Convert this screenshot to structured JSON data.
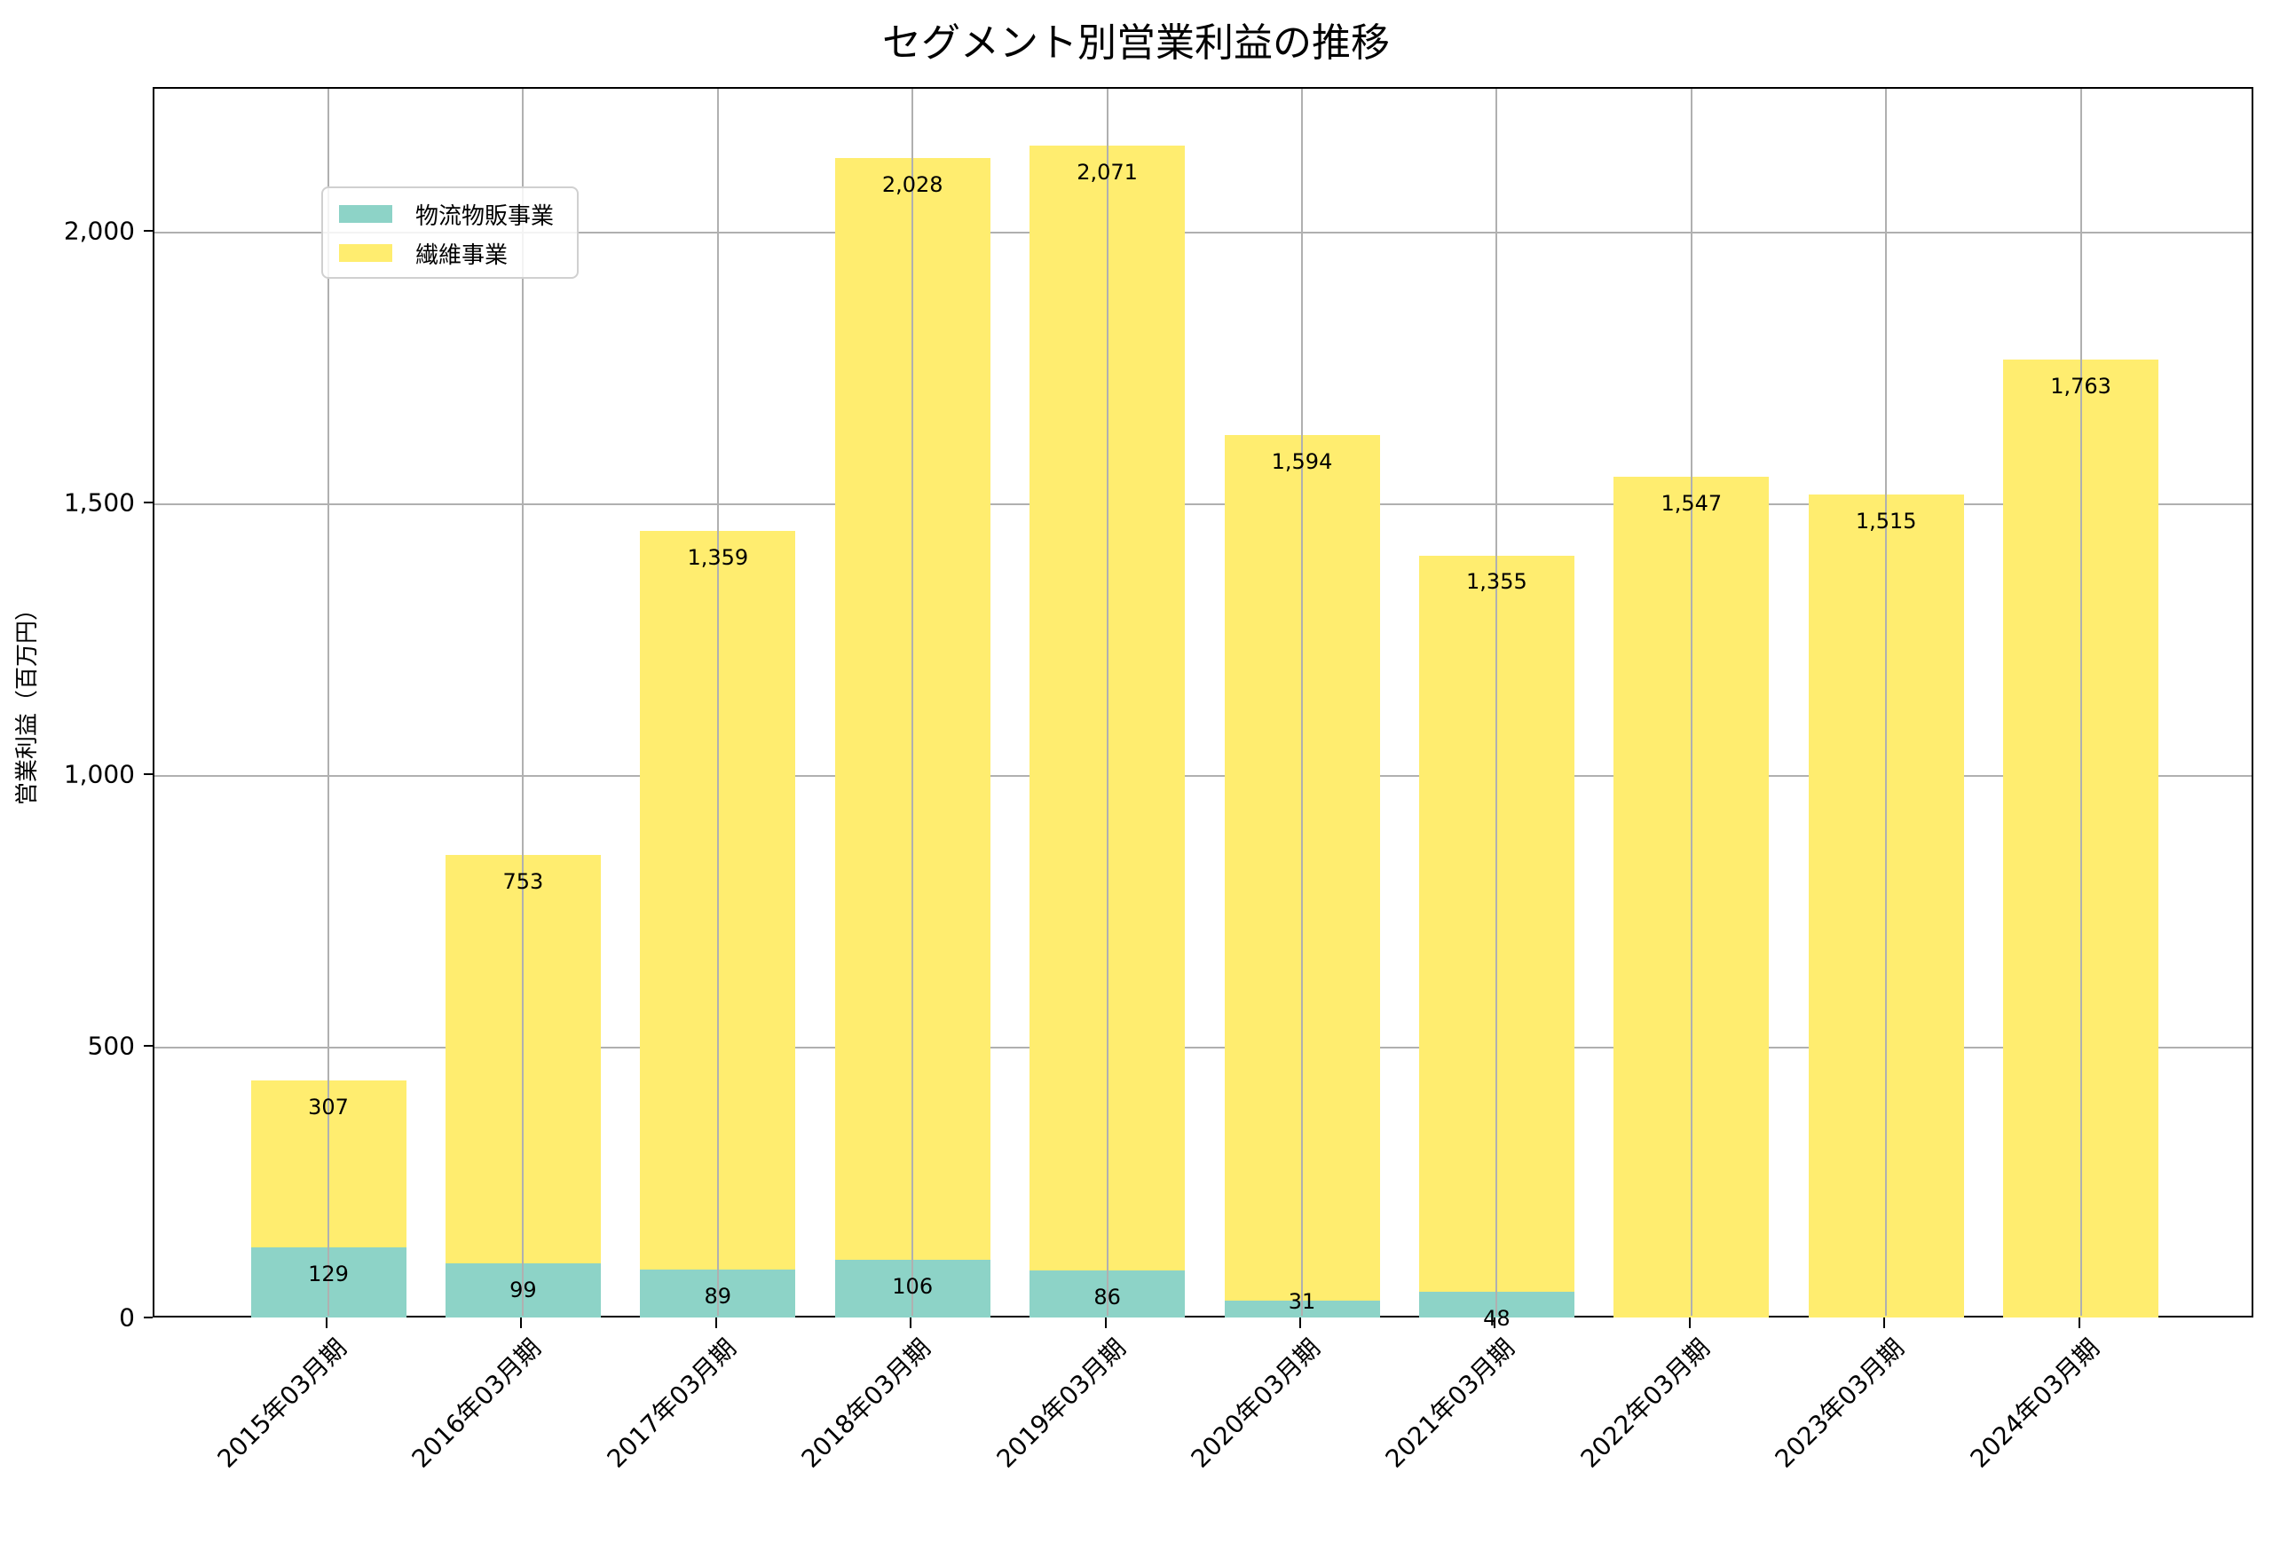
{
  "chart_data": {
    "type": "bar",
    "stacked": true,
    "title": "セグメント別営業利益の推移",
    "xlabel": "",
    "ylabel": "営業利益（百万円）",
    "ylim": [
      0,
      2265
    ],
    "yticks": [
      0,
      500,
      1000,
      1500,
      2000
    ],
    "ytick_labels": [
      "0",
      "500",
      "1,000",
      "1,500",
      "2,000"
    ],
    "grid": true,
    "legend_position": "upper left",
    "categories": [
      "2015年03月期",
      "2016年03月期",
      "2017年03月期",
      "2018年03月期",
      "2019年03月期",
      "2020年03月期",
      "2021年03月期",
      "2022年03月期",
      "2023年03月期",
      "2024年03月期"
    ],
    "series": [
      {
        "name": "物流物販事業",
        "color": "#8dd3c7",
        "values": [
          129,
          99,
          89,
          106,
          86,
          31,
          48,
          0,
          0,
          0
        ],
        "labels": [
          "129",
          "99",
          "89",
          "106",
          "86",
          "31",
          "48",
          "",
          "",
          ""
        ]
      },
      {
        "name": "繊維事業",
        "color": "#ffed6f",
        "values": [
          307,
          753,
          1359,
          2028,
          2071,
          1594,
          1355,
          1547,
          1515,
          1763
        ],
        "labels": [
          "307",
          "753",
          "1,359",
          "2,028",
          "2,071",
          "1,594",
          "1,355",
          "1,547",
          "1,515",
          "1,763"
        ]
      }
    ]
  }
}
